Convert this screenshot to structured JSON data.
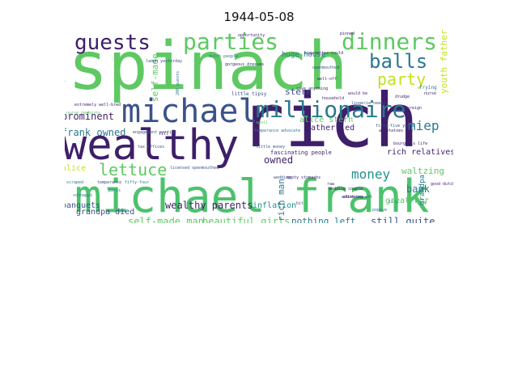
{
  "title": "1944-05-08",
  "palette": [
    "#440154",
    "#3b528b",
    "#21918c",
    "#5ec962",
    "#fde725"
  ],
  "words": [
    {
      "text": "spinach",
      "color": "#5ec962"
    },
    {
      "text": "rich",
      "color": "#3e1f6a"
    },
    {
      "text": "michael frank",
      "color": "#4cc26c"
    },
    {
      "text": "wealthy",
      "color": "#3e1f6a"
    },
    {
      "text": "michael",
      "color": "#3b528b"
    },
    {
      "text": "millionaire",
      "color": "#2a788e"
    },
    {
      "text": "parties",
      "color": "#5ec962"
    },
    {
      "text": "dinners",
      "color": "#5ec962"
    },
    {
      "text": "guests",
      "color": "#3e1f6a"
    },
    {
      "text": "balls",
      "color": "#2a788e"
    },
    {
      "text": "party",
      "color": "#c5e021"
    },
    {
      "text": "lettuce",
      "color": "#5ec962"
    },
    {
      "text": "money",
      "color": "#21918c"
    },
    {
      "text": "miep",
      "color": "#2a788e"
    },
    {
      "text": "prominent",
      "color": "#3e1f6a"
    },
    {
      "text": "frank owned",
      "color": "#2a788e"
    },
    {
      "text": "wealthy parents",
      "color": "#3e1f6a"
    },
    {
      "text": "inflation",
      "color": "#21918c"
    },
    {
      "text": "self-made man",
      "color": "#5ec962"
    },
    {
      "text": "grandpa died",
      "color": "#3b528b"
    },
    {
      "text": "beautiful girls",
      "color": "#5ec962"
    },
    {
      "text": "nothing left",
      "color": "#2a788e"
    },
    {
      "text": "still quite",
      "color": "#3b528b"
    },
    {
      "text": "rich relatives",
      "color": "#3e1f6a"
    },
    {
      "text": "great war",
      "color": "#5ec962"
    },
    {
      "text": "father led",
      "color": "#3e1f6a"
    },
    {
      "text": "alice stern",
      "color": "#5ec962"
    },
    {
      "text": "stern",
      "color": "#3b528b"
    },
    {
      "text": "huge house",
      "color": "#2a788e"
    },
    {
      "text": "bank",
      "color": "#2a788e"
    },
    {
      "text": "owned",
      "color": "#3e1f6a"
    },
    {
      "text": "waltzing",
      "color": "#5ec962"
    },
    {
      "text": "alice",
      "color": "#c5e021"
    },
    {
      "text": "banquets",
      "color": "#3b528b"
    },
    {
      "text": "rich man",
      "color": "#2a788e"
    },
    {
      "text": "self-made",
      "color": "#5ec962"
    },
    {
      "text": "youth father",
      "color": "#c5e021"
    },
    {
      "text": "grandpa",
      "color": "#2a788e"
    },
    {
      "text": "parties every",
      "color": "#c5e021"
    },
    {
      "text": "fascinating people",
      "color": "#3e1f6a"
    },
    {
      "text": "little money",
      "color": "#3b528b"
    },
    {
      "text": "engagement parties",
      "color": "#3b528b"
    },
    {
      "text": "temperance advocate",
      "color": "#2a788e"
    },
    {
      "text": "wedding couple",
      "color": "#3e1f6a"
    },
    {
      "text": "studying art",
      "color": "#3b528b"
    },
    {
      "text": "bourgeois life",
      "color": "#3e1f6a"
    },
    {
      "text": "little tipsy",
      "color": "#3b528b"
    },
    {
      "text": "dutch people",
      "color": "#2a788e"
    },
    {
      "text": "gorgeous dresses",
      "color": "#3e1f6a"
    },
    {
      "text": "lingerie needs",
      "color": "#3b528b"
    },
    {
      "text": "save anything",
      "color": "#3e1f6a"
    },
    {
      "text": "cigarettes-could",
      "color": "#3e1f6a"
    },
    {
      "text": "well-off",
      "color": "#3e1f6a"
    },
    {
      "text": "fifty-five years",
      "color": "#3b528b"
    },
    {
      "text": "a potatoes day",
      "color": "#3e1f6a"
    },
    {
      "text": "tax offices",
      "color": "#3b528b"
    },
    {
      "text": "licensed openmouthed",
      "color": "#3b528b"
    },
    {
      "text": "empty stomachs",
      "color": "#3e1f6a"
    },
    {
      "text": "good dutch",
      "color": "#3e1f6a"
    },
    {
      "text": "nurse newborns",
      "color": "#5ec962"
    },
    {
      "text": "laugh yesterday",
      "color": "#3b528b"
    },
    {
      "text": "fifty-four",
      "color": "#2a788e"
    },
    {
      "text": "frying",
      "color": "#2a788e"
    },
    {
      "text": "drudge",
      "color": "#3e1f6a"
    },
    {
      "text": "nurse",
      "color": "#3e1f6a"
    },
    {
      "text": "scraped",
      "color": "#2a788e"
    },
    {
      "text": "temperance",
      "color": "#3b528b"
    },
    {
      "text": "schnapps",
      "color": "#2a788e"
    },
    {
      "text": "addresses",
      "color": "#3e1f6a"
    },
    {
      "text": "popeye",
      "color": "#2a788e"
    },
    {
      "text": "raw",
      "color": "#3e1f6a"
    },
    {
      "text": "pinned",
      "color": "#3e1f6a"
    },
    {
      "text": "opportunity",
      "color": "#3e1f6a"
    },
    {
      "text": "bit",
      "color": "#3b528b"
    },
    {
      "text": "extremely well-bred",
      "color": "#3e1f6a"
    },
    {
      "text": "200 guests",
      "color": "#2a788e"
    },
    {
      "text": "would be",
      "color": "#3e1f6a"
    },
    {
      "text": "openmouthed",
      "color": "#3b528b"
    },
    {
      "text": "paris",
      "color": "#2a788e"
    },
    {
      "text": "fill",
      "color": "#3e1f6a"
    },
    {
      "text": "household",
      "color": "#3e1f6a"
    },
    {
      "text": "wedding",
      "color": "#3b528b"
    },
    {
      "text": "tiny",
      "color": "#2a788e"
    },
    {
      "text": "foreign",
      "color": "#3e1f6a"
    },
    {
      "text": "spoil",
      "color": "#5ec962"
    }
  ]
}
